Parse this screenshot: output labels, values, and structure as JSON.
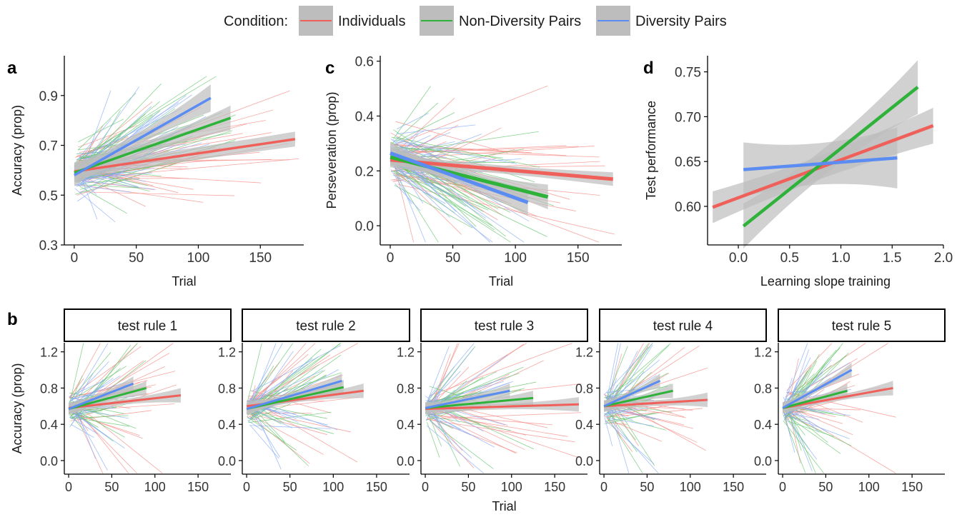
{
  "colors": {
    "individuals": "#F0605A",
    "non_diversity": "#2EB23A",
    "diversity": "#5B8CF2",
    "ribbon": "#bdbdbd",
    "axis": "#000000",
    "text": "#1a1a1a"
  },
  "legend": {
    "title": "Condition:",
    "entries": [
      {
        "key": "individuals",
        "label": "Individuals"
      },
      {
        "key": "non_diversity",
        "label": "Non-Diversity Pairs"
      },
      {
        "key": "diversity",
        "label": "Diversity Pairs"
      }
    ]
  },
  "chart_data": [
    {
      "id": "a",
      "panel_label": "a",
      "type": "line",
      "xlabel": "Trial",
      "ylabel": "Accuracy (prop)",
      "xlim": [
        -8,
        185
      ],
      "ylim": [
        0.3,
        1.06
      ],
      "xticks": [
        0,
        50,
        100,
        150
      ],
      "yticks": [
        0.3,
        0.5,
        0.7,
        0.9
      ],
      "series": [
        {
          "name": "Individuals",
          "key": "individuals",
          "x": [
            0,
            178
          ],
          "y": [
            0.595,
            0.725
          ],
          "ci": [
            0.025,
            0.03
          ]
        },
        {
          "name": "Non-Diversity Pairs",
          "key": "non_diversity",
          "x": [
            0,
            126
          ],
          "y": [
            0.59,
            0.81
          ],
          "ci": [
            0.025,
            0.05
          ]
        },
        {
          "name": "Diversity Pairs",
          "key": "diversity",
          "x": [
            0,
            110
          ],
          "y": [
            0.58,
            0.89
          ],
          "ci": [
            0.025,
            0.055
          ]
        }
      ]
    },
    {
      "id": "c",
      "panel_label": "c",
      "type": "line",
      "xlabel": "Trial",
      "ylabel": "Perseveration (prop)",
      "xlim": [
        -8,
        185
      ],
      "ylim": [
        -0.07,
        0.62
      ],
      "xticks": [
        0,
        50,
        100,
        150
      ],
      "yticks": [
        0.0,
        0.2,
        0.4,
        0.6
      ],
      "series": [
        {
          "name": "Individuals",
          "key": "individuals",
          "x": [
            0,
            178
          ],
          "y": [
            0.24,
            0.17
          ],
          "ci": [
            0.015,
            0.025
          ]
        },
        {
          "name": "Non-Diversity Pairs",
          "key": "non_diversity",
          "x": [
            0,
            126
          ],
          "y": [
            0.25,
            0.105
          ],
          "ci": [
            0.02,
            0.045
          ]
        },
        {
          "name": "Diversity Pairs",
          "key": "diversity",
          "x": [
            0,
            110
          ],
          "y": [
            0.265,
            0.085
          ],
          "ci": [
            0.02,
            0.05
          ]
        }
      ]
    },
    {
      "id": "d",
      "panel_label": "d",
      "type": "line",
      "xlabel": "Learning slope training",
      "ylabel": "Test performance",
      "xlim": [
        -0.3,
        2.0
      ],
      "ylim": [
        0.557,
        0.768
      ],
      "xticks": [
        0.0,
        0.5,
        1.0,
        1.5,
        2.0
      ],
      "yticks": [
        0.6,
        0.65,
        0.7,
        0.75
      ],
      "ytick_labels": [
        "0.60",
        "0.65",
        "0.70",
        "0.75"
      ],
      "xtick_labels": [
        "0.0",
        "0.5",
        "1.0",
        "1.5",
        "2.0"
      ],
      "series": [
        {
          "name": "Individuals",
          "key": "individuals",
          "x": [
            -0.25,
            1.9
          ],
          "y": [
            0.599,
            0.69
          ],
          "ci": [
            0.013,
            0.02
          ]
        },
        {
          "name": "Non-Diversity Pairs",
          "key": "non_diversity",
          "x": [
            0.05,
            1.75
          ],
          "y": [
            0.578,
            0.733
          ],
          "ci": [
            0.015,
            0.03
          ]
        },
        {
          "name": "Diversity Pairs",
          "key": "diversity",
          "x": [
            0.05,
            1.55
          ],
          "y": [
            0.641,
            0.654
          ],
          "ci": [
            0.023,
            0.034
          ]
        }
      ]
    },
    {
      "id": "b",
      "panel_label": "b",
      "type": "line",
      "xlabel": "Trial",
      "ylabel": "Accuracy (prop)",
      "xlim": [
        -5,
        188
      ],
      "ylim": [
        -0.15,
        1.3
      ],
      "xticks": [
        0,
        50,
        100,
        150
      ],
      "yticks": [
        0.0,
        0.4,
        0.8,
        1.2
      ],
      "facets": [
        {
          "strip": "test rule 1",
          "series": [
            {
              "key": "individuals",
              "x": [
                0,
                130
              ],
              "y": [
                0.58,
                0.72
              ]
            },
            {
              "key": "non_diversity",
              "x": [
                0,
                90
              ],
              "y": [
                0.57,
                0.8
              ]
            },
            {
              "key": "diversity",
              "x": [
                0,
                75
              ],
              "y": [
                0.57,
                0.85
              ]
            }
          ]
        },
        {
          "strip": "test rule 2",
          "series": [
            {
              "key": "individuals",
              "x": [
                0,
                135
              ],
              "y": [
                0.6,
                0.77
              ]
            },
            {
              "key": "non_diversity",
              "x": [
                0,
                112
              ],
              "y": [
                0.57,
                0.81
              ]
            },
            {
              "key": "diversity",
              "x": [
                0,
                110
              ],
              "y": [
                0.57,
                0.88
              ]
            }
          ]
        },
        {
          "strip": "test rule 3",
          "series": [
            {
              "key": "individuals",
              "x": [
                0,
                178
              ],
              "y": [
                0.57,
                0.62
              ]
            },
            {
              "key": "non_diversity",
              "x": [
                0,
                125
              ],
              "y": [
                0.58,
                0.69
              ]
            },
            {
              "key": "diversity",
              "x": [
                0,
                98
              ],
              "y": [
                0.58,
                0.77
              ]
            }
          ]
        },
        {
          "strip": "test rule 4",
          "series": [
            {
              "key": "individuals",
              "x": [
                0,
                120
              ],
              "y": [
                0.6,
                0.67
              ]
            },
            {
              "key": "non_diversity",
              "x": [
                0,
                80
              ],
              "y": [
                0.6,
                0.77
              ]
            },
            {
              "key": "diversity",
              "x": [
                0,
                65
              ],
              "y": [
                0.6,
                0.88
              ]
            }
          ]
        },
        {
          "strip": "test rule 5",
          "series": [
            {
              "key": "individuals",
              "x": [
                0,
                128
              ],
              "y": [
                0.58,
                0.8
              ]
            },
            {
              "key": "non_diversity",
              "x": [
                0,
                75
              ],
              "y": [
                0.58,
                0.77
              ]
            },
            {
              "key": "diversity",
              "x": [
                0,
                80
              ],
              "y": [
                0.58,
                1.0
              ]
            }
          ]
        }
      ]
    }
  ]
}
